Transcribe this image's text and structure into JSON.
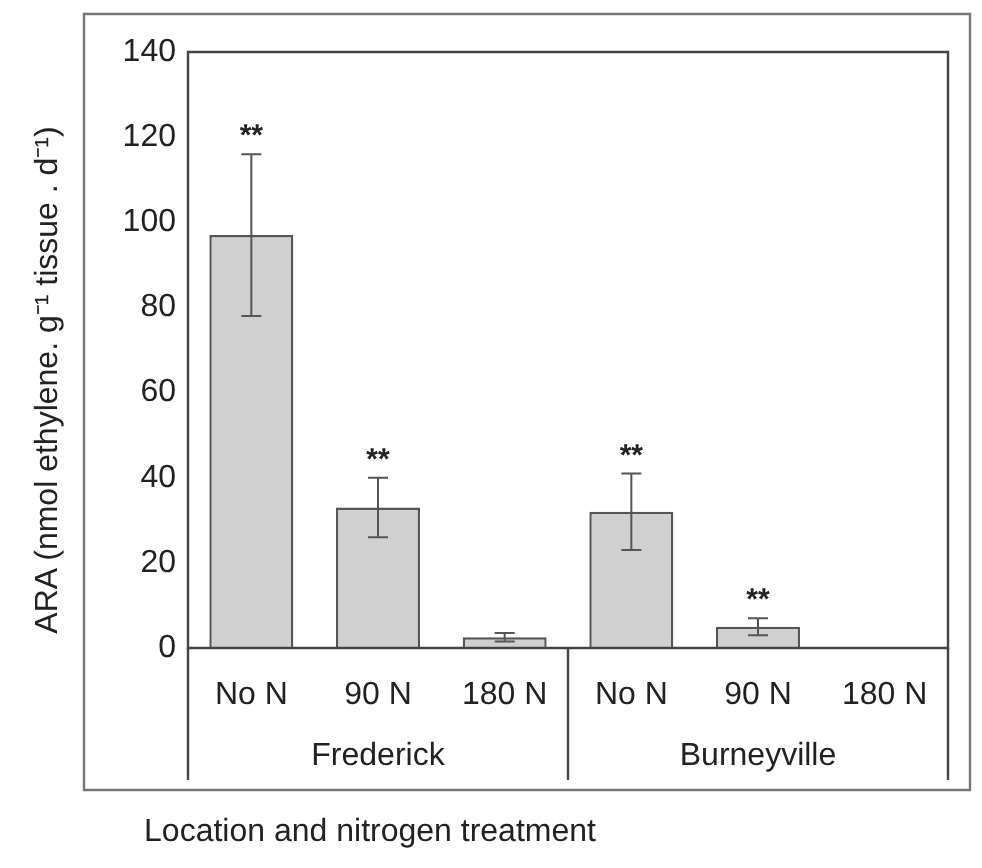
{
  "chart_data": {
    "type": "bar",
    "xlabel": "Location and nitrogen treatment",
    "ylabel": "ARA (nmol ethylene. g⁻¹ tissue . d⁻¹)",
    "categories": [
      "No N",
      "90 N",
      "180 N",
      "No N",
      "90 N",
      "180 N"
    ],
    "values": [
      97,
      33,
      2.5,
      32,
      5,
      0
    ],
    "errors": [
      19,
      7,
      1,
      9,
      2,
      null
    ],
    "value_labels": [
      "**",
      "**",
      null,
      "**",
      "**",
      null
    ],
    "color": "#d0d0d0",
    "ylim": [
      0,
      140
    ],
    "yticks": [
      0,
      20,
      40,
      60,
      80,
      100,
      120,
      140
    ],
    "annotations": [
      "Frederick",
      "Burneyville"
    ],
    "grid": false,
    "legend": false
  }
}
